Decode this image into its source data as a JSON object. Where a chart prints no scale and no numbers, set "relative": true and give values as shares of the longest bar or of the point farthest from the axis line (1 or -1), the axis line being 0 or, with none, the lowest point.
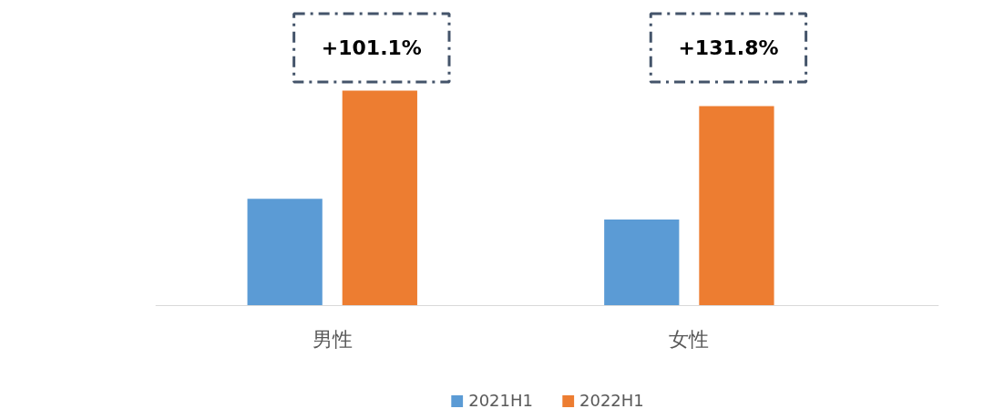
{
  "chart_data": {
    "type": "bar",
    "relative": true,
    "categories": [
      "男性",
      "女性"
    ],
    "series": [
      {
        "name": "2021H1",
        "color": "#5b9bd5",
        "values": [
          0.497,
          0.4
        ]
      },
      {
        "name": "2022H1",
        "color": "#ed7d31",
        "values": [
          1,
          0.928
        ]
      }
    ],
    "annotations": [
      "+101.1%",
      "+131.8%"
    ],
    "legend": "bottom"
  }
}
